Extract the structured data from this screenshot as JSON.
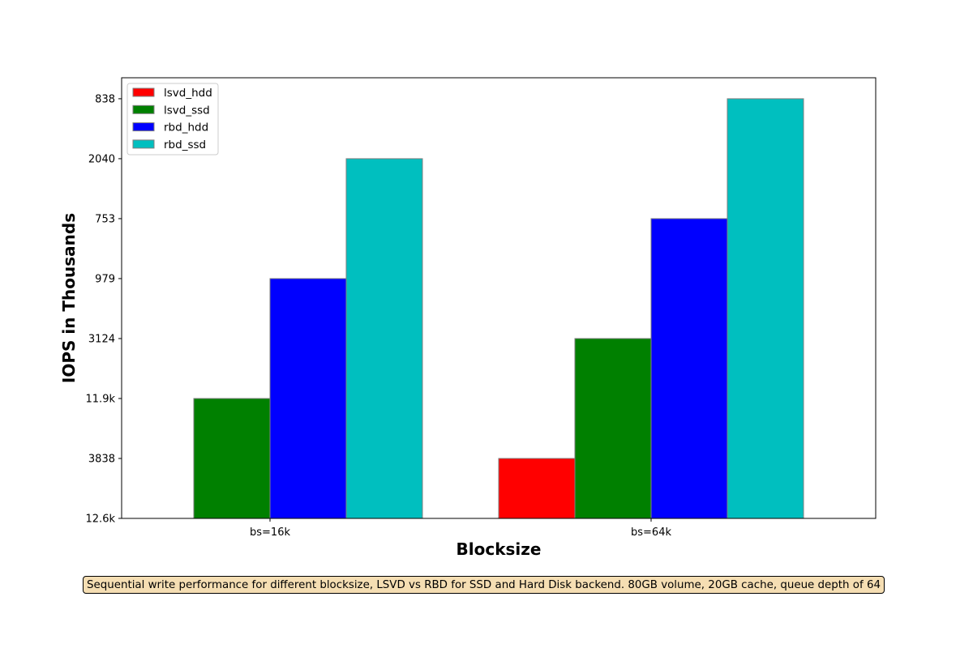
{
  "chart_data": {
    "type": "bar",
    "xlabel": "Blocksize",
    "ylabel": "IOPS in Thousands",
    "categories": [
      "bs=16k",
      "bs=64k"
    ],
    "y_tick_labels": [
      "12.6k",
      "3838",
      "11.9k",
      "3124",
      "979",
      "753",
      "2040",
      "838"
    ],
    "ylim": [
      0,
      7.35
    ],
    "series": [
      {
        "name": "lsvd_hdd",
        "color": "#ff0000",
        "values": [
          0,
          1
        ]
      },
      {
        "name": "lsvd_ssd",
        "color": "#008000",
        "values": [
          2,
          3
        ]
      },
      {
        "name": "rbd_hdd",
        "color": "#0000ff",
        "values": [
          4,
          5
        ]
      },
      {
        "name": "rbd_ssd",
        "color": "#00bfbf",
        "values": [
          6,
          7
        ]
      }
    ],
    "legend_position": "upper-left",
    "grid": false,
    "caption": "Sequential write performance for different blocksize, LSVD vs RBD for SSD and Hard Disk backend. 80GB volume, 20GB cache, queue depth of 64"
  }
}
